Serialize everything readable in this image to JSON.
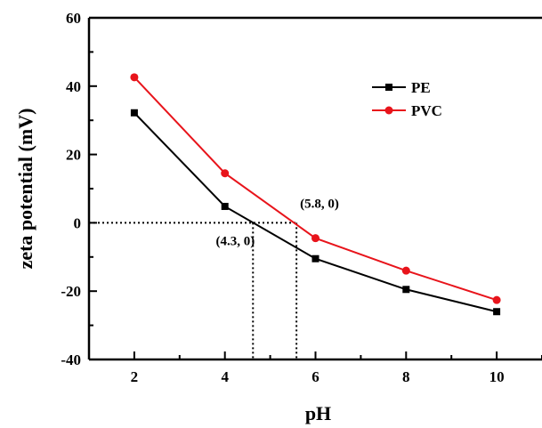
{
  "chart_data": {
    "type": "line",
    "xlabel": "pH",
    "ylabel": "zeta potential (mV)",
    "xlim": [
      1,
      11
    ],
    "ylim": [
      -40,
      60
    ],
    "xticks": [
      2,
      4,
      6,
      8,
      10
    ],
    "yticks": [
      -40,
      -20,
      0,
      20,
      40,
      60
    ],
    "x": [
      2,
      4,
      6,
      8,
      10
    ],
    "grid": false,
    "legend_position": "top-right",
    "series": [
      {
        "name": "PE",
        "color": "#000000",
        "marker": "square",
        "values": [
          32.2,
          4.8,
          -10.5,
          -19.5,
          -26.0
        ]
      },
      {
        "name": "PVC",
        "color": "#e8141b",
        "marker": "circle",
        "values": [
          42.6,
          14.5,
          -4.5,
          -14.0,
          -22.6
        ]
      }
    ],
    "annotations": [
      {
        "text": "(5.8, 0)",
        "x": 5.58,
        "y": 0
      },
      {
        "text": "(4.3, 0)",
        "x": 4.62,
        "y": 0
      }
    ]
  }
}
